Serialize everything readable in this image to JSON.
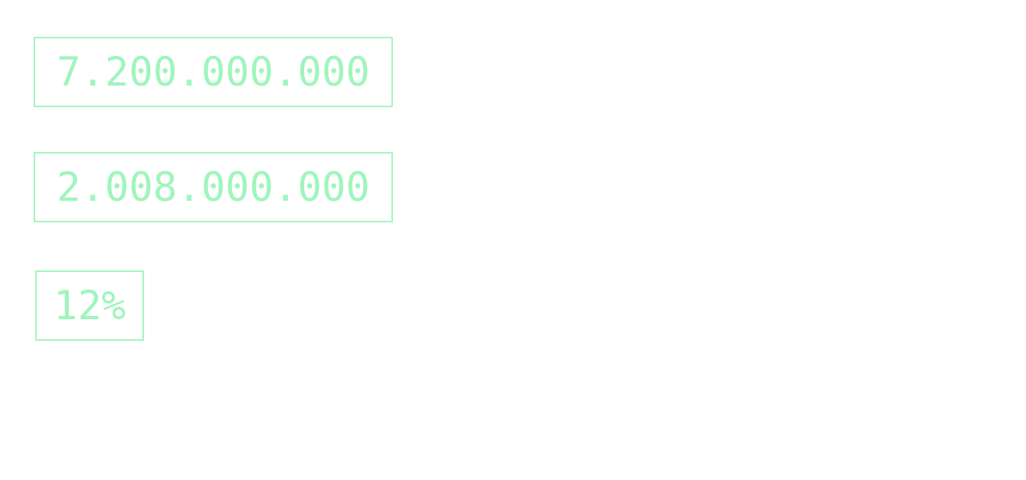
{
  "fields": {
    "first_amount": "7.200.000.000",
    "second_amount": "2.008.000.000",
    "percentage": "12%"
  },
  "colors": {
    "text": "#a0f5bd",
    "border": "#a8f5c4",
    "background": "#ffffff"
  }
}
